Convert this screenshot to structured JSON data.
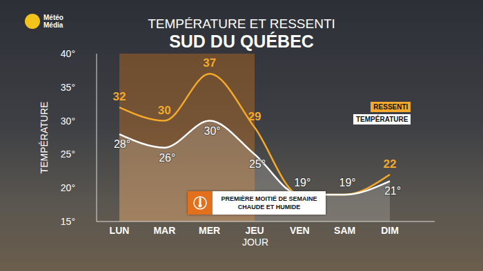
{
  "chart_data": {
    "type": "line",
    "title": "TEMPÉRATURE ET RESSENTI",
    "subtitle": "SUD DU QUÉBEC",
    "source": [
      "Météo",
      "Média"
    ],
    "x_label": "JOUR",
    "y_label": "TEMPÉRATURE",
    "annotation": [
      "PREMIÈRE MOITIÉ DE SEMAINE",
      "CHAUDE ET HUMIDE"
    ],
    "categories": [
      "LUN",
      "MAR",
      "MER",
      "JEU",
      "VEN",
      "SAM",
      "DIM"
    ],
    "series": [
      {
        "name": "RESSENTI",
        "color": "#f3a92b",
        "values": [
          32,
          30,
          37,
          29,
          19,
          19,
          22
        ],
        "value_labels": [
          "32",
          "30",
          "37",
          "29",
          null,
          null,
          "22"
        ]
      },
      {
        "name": "TEMPÉRATURE",
        "color": "#ffffff",
        "values": [
          28,
          26,
          30,
          25,
          19,
          19,
          21
        ],
        "value_labels": [
          "28°",
          "26°",
          "30°",
          "25°",
          "19°",
          "19°",
          "21°"
        ]
      }
    ],
    "ylim": [
      15,
      40
    ],
    "yticks": [
      {
        "value": 15,
        "label": "15°"
      },
      {
        "value": 20,
        "label": "20°"
      },
      {
        "value": 25,
        "label": "25°"
      },
      {
        "value": 30,
        "label": "30°"
      },
      {
        "value": 35,
        "label": "35°"
      },
      {
        "value": 40,
        "label": "40°"
      }
    ],
    "grid": false,
    "data_labels": true,
    "legend": "right"
  }
}
